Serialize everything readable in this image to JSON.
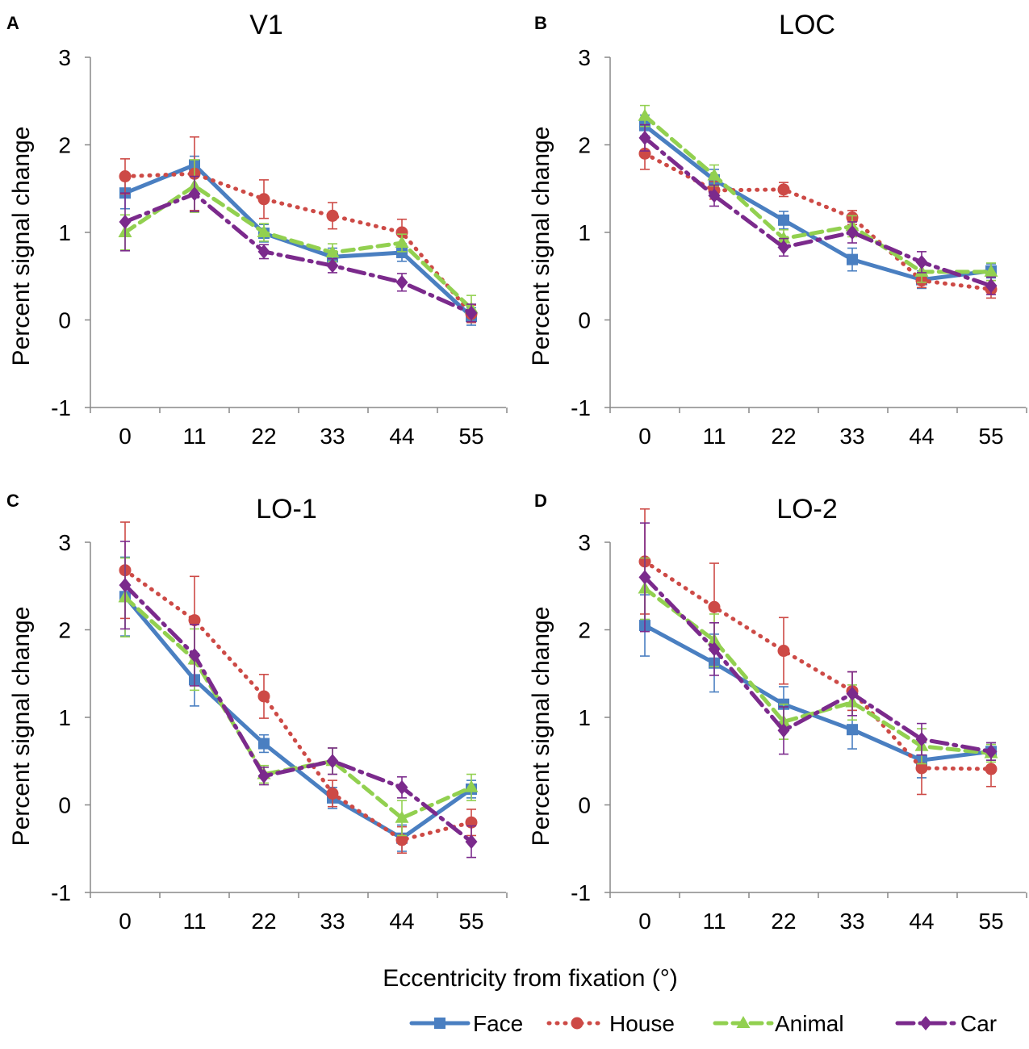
{
  "figure": {
    "xlabel": "Eccentricity from fixation (°)"
  },
  "legend": {
    "items": [
      {
        "name": "Face",
        "color": "#4a7fc1",
        "marker": "square",
        "dash": "solid"
      },
      {
        "name": "House",
        "color": "#cd4a46",
        "marker": "circle",
        "dash": "dotted"
      },
      {
        "name": "Animal",
        "color": "#92d050",
        "marker": "triangle",
        "dash": "dashed"
      },
      {
        "name": "Car",
        "color": "#7b2a8c",
        "marker": "diamond",
        "dash": "dashdot"
      }
    ]
  },
  "chart_data": [
    {
      "type": "line",
      "panel": "A",
      "title": "V1",
      "ylabel": "Percent signal change",
      "x": [
        0,
        11,
        22,
        33,
        44,
        55
      ],
      "ylim": [
        -1,
        3
      ],
      "yticks": [
        -1,
        0,
        1,
        2,
        3
      ],
      "series": [
        {
          "name": "Face",
          "values": [
            1.45,
            1.77,
            0.99,
            0.72,
            0.77,
            0.04
          ],
          "errors": [
            0.18,
            0.1,
            0.1,
            0.1,
            0.1,
            0.1
          ]
        },
        {
          "name": "House",
          "values": [
            1.64,
            1.67,
            1.38,
            1.19,
            1.0,
            0.07
          ],
          "errors": [
            0.2,
            0.42,
            0.22,
            0.15,
            0.15,
            0.1
          ]
        },
        {
          "name": "Animal",
          "values": [
            1.0,
            1.53,
            1.0,
            0.77,
            0.88,
            0.13
          ],
          "errors": [
            0.2,
            0.3,
            0.1,
            0.1,
            0.1,
            0.15
          ]
        },
        {
          "name": "Car",
          "values": [
            1.12,
            1.44,
            0.78,
            0.62,
            0.43,
            0.08
          ],
          "errors": [
            0.33,
            0.2,
            0.08,
            0.08,
            0.1,
            0.1
          ]
        }
      ]
    },
    {
      "type": "line",
      "panel": "B",
      "title": "LOC",
      "ylabel": "Percent signal change",
      "x": [
        0,
        11,
        22,
        33,
        44,
        55
      ],
      "ylim": [
        -1,
        3
      ],
      "yticks": [
        -1,
        0,
        1,
        2,
        3
      ],
      "series": [
        {
          "name": "Face",
          "values": [
            2.22,
            1.6,
            1.14,
            0.69,
            0.46,
            0.56
          ],
          "errors": [
            0.12,
            0.12,
            0.1,
            0.13,
            0.1,
            0.08
          ]
        },
        {
          "name": "House",
          "values": [
            1.9,
            1.48,
            1.49,
            1.17,
            0.45,
            0.35
          ],
          "errors": [
            0.18,
            0.1,
            0.08,
            0.08,
            0.08,
            0.1
          ]
        },
        {
          "name": "Animal",
          "values": [
            2.33,
            1.65,
            0.93,
            1.07,
            0.55,
            0.55
          ],
          "errors": [
            0.12,
            0.12,
            0.1,
            0.12,
            0.12,
            0.1
          ]
        },
        {
          "name": "Car",
          "values": [
            2.08,
            1.42,
            0.83,
            1.0,
            0.66,
            0.39
          ],
          "errors": [
            0.15,
            0.12,
            0.1,
            0.12,
            0.12,
            0.1
          ]
        }
      ]
    },
    {
      "type": "line",
      "panel": "C",
      "title": "LO-1",
      "ylabel": "Percent signal change",
      "x": [
        0,
        11,
        22,
        33,
        44,
        55
      ],
      "ylim": [
        -1,
        3
      ],
      "yticks": [
        -1,
        0,
        1,
        2,
        3
      ],
      "series": [
        {
          "name": "Face",
          "values": [
            2.38,
            1.43,
            0.7,
            0.08,
            -0.38,
            0.18
          ],
          "errors": [
            0.45,
            0.3,
            0.1,
            0.12,
            0.15,
            0.1
          ]
        },
        {
          "name": "House",
          "values": [
            2.68,
            2.11,
            1.24,
            0.13,
            -0.4,
            -0.2
          ],
          "errors": [
            0.55,
            0.5,
            0.25,
            0.15,
            0.15,
            0.15
          ]
        },
        {
          "name": "Animal",
          "values": [
            2.37,
            1.66,
            0.35,
            0.5,
            -0.15,
            0.2
          ],
          "errors": [
            0.45,
            0.35,
            0.1,
            0.15,
            0.2,
            0.15
          ]
        },
        {
          "name": "Car",
          "values": [
            2.51,
            1.71,
            0.33,
            0.5,
            0.2,
            -0.42
          ],
          "errors": [
            0.5,
            0.35,
            0.1,
            0.15,
            0.12,
            0.18
          ]
        }
      ]
    },
    {
      "type": "line",
      "panel": "D",
      "title": "LO-2",
      "ylabel": "Percent signal change",
      "x": [
        0,
        11,
        22,
        33,
        44,
        55
      ],
      "ylim": [
        -1,
        3
      ],
      "yticks": [
        -1,
        0,
        1,
        2,
        3
      ],
      "series": [
        {
          "name": "Face",
          "values": [
            2.05,
            1.62,
            1.15,
            0.86,
            0.51,
            0.61
          ],
          "errors": [
            0.35,
            0.33,
            0.2,
            0.22,
            0.2,
            0.1
          ]
        },
        {
          "name": "House",
          "values": [
            2.78,
            2.26,
            1.76,
            1.3,
            0.42,
            0.41
          ],
          "errors": [
            0.6,
            0.5,
            0.38,
            0.22,
            0.3,
            0.2
          ]
        },
        {
          "name": "Animal",
          "values": [
            2.47,
            1.88,
            0.95,
            1.17,
            0.67,
            0.59
          ],
          "errors": [
            0.35,
            0.3,
            0.2,
            0.2,
            0.2,
            0.1
          ]
        },
        {
          "name": "Car",
          "values": [
            2.6,
            1.78,
            0.85,
            1.27,
            0.75,
            0.61
          ],
          "errors": [
            0.62,
            0.3,
            0.27,
            0.25,
            0.18,
            0.1
          ]
        }
      ]
    }
  ]
}
